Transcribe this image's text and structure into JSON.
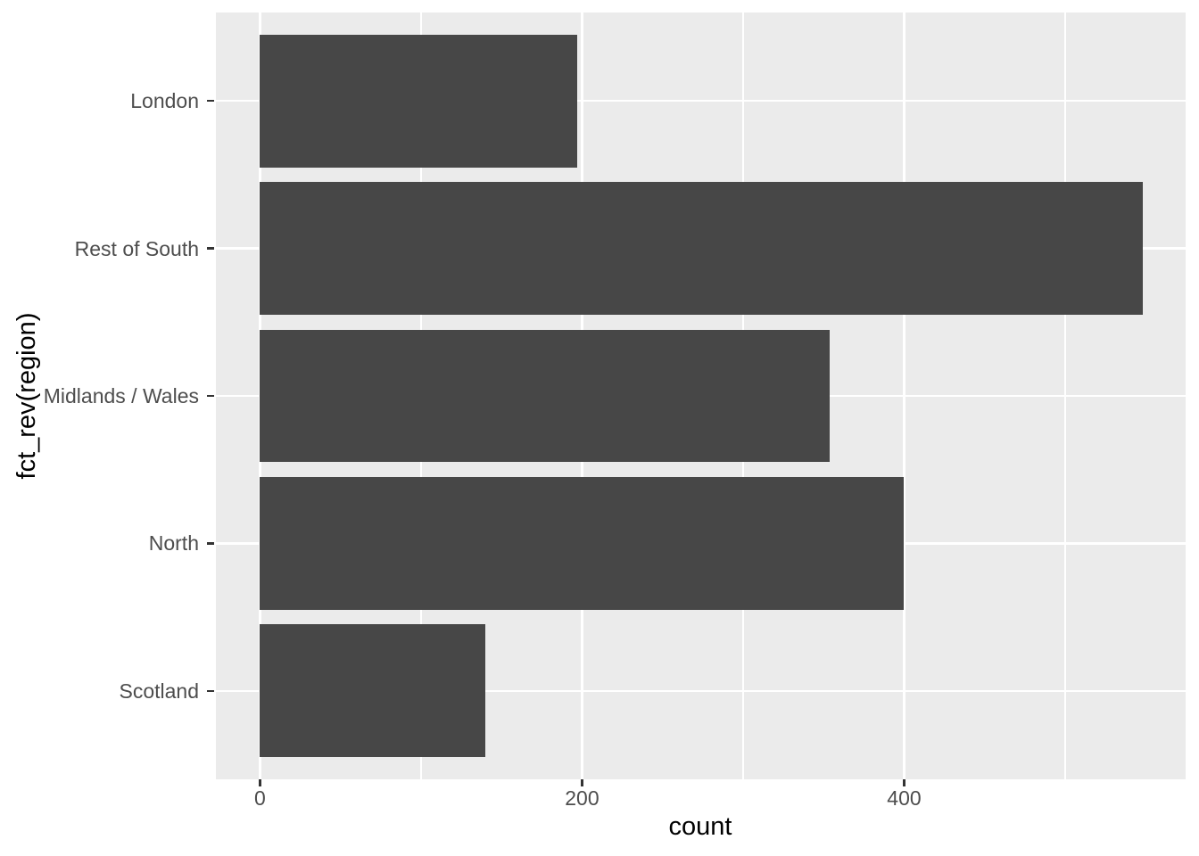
{
  "chart_data": {
    "type": "bar",
    "orientation": "horizontal",
    "title": "",
    "xlabel": "count",
    "ylabel": "fct_rev(region)",
    "categories": [
      "London",
      "Rest of South",
      "Midlands / Wales",
      "North",
      "Scotland"
    ],
    "series": [
      {
        "name": "count",
        "values": [
          197,
          548,
          354,
          400,
          140
        ]
      }
    ],
    "values": [
      197,
      548,
      354,
      400,
      140
    ],
    "xlim": [
      -27.4,
      574.8
    ],
    "x_major_ticks": [
      0,
      200,
      400
    ],
    "x_tick_labels": [
      "0",
      "200",
      "400"
    ],
    "x_minor_gridlines": [
      100,
      300,
      500
    ],
    "bar_width_fraction": 0.9,
    "grid": "white major + minor vertical gridlines, white major horizontal gridlines at category centers",
    "legend": "none",
    "colors": {
      "bar_fill": "#474747",
      "panel_bg": "#EBEBEB",
      "grid": "#FFFFFF",
      "tick_mark": "#333333",
      "tick_label": "#4D4D4D",
      "axis_title": "#000000",
      "outer_bg": "#FFFFFF"
    }
  }
}
